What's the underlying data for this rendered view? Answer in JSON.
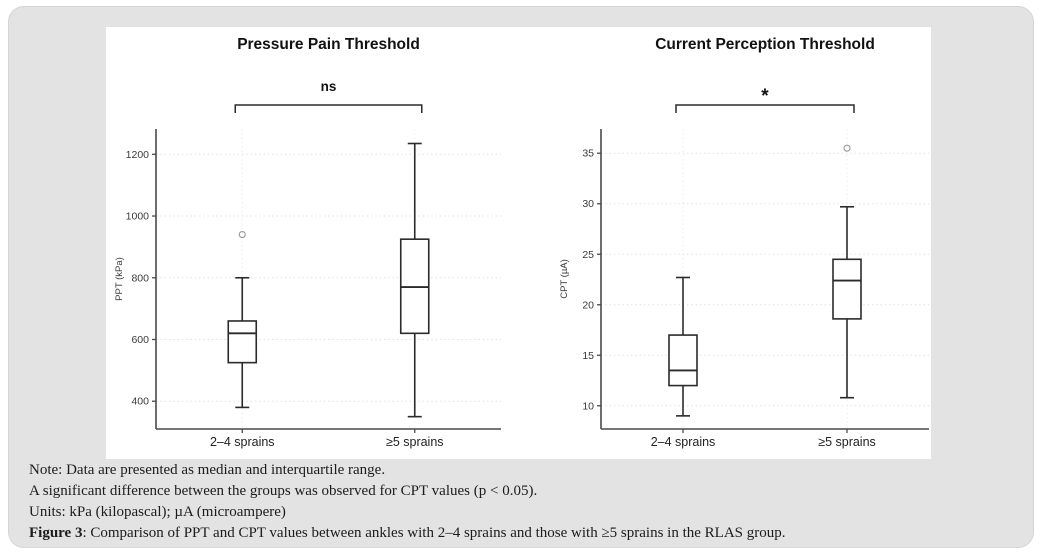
{
  "colors": {
    "card_background": "#e3e3e3",
    "panel_background": "#ffffff",
    "box_stroke": "#2b2b2b",
    "axis": "#4a4a4a",
    "grid": "#e1e1e1",
    "category_grid": "#ececec",
    "outlier": "#999999",
    "caption_text": "#1c1c1c"
  },
  "figure": {
    "caption": {
      "note": "Note: Data are presented as median and interquartile range.",
      "significance": "A significant difference between the groups was observed for CPT values (p < 0.05).",
      "units": "Units: kPa (kilopascal); µA (microampere)",
      "figure_label": "Figure 3",
      "figure_text": ": Comparison of PPT and CPT values between ankles with 2–4 sprains and those with ≥5 sprains in the RLAS group."
    }
  },
  "chart_data": [
    {
      "type": "box",
      "title": "Pressure Pain Threshold",
      "significance": "ns",
      "ylabel": "PPT (kPa)",
      "yticks": [
        400,
        600,
        800,
        1000,
        1200
      ],
      "ylim": [
        310,
        1282
      ],
      "grid": "dotted-horizontal",
      "categories": [
        "2–4 sprains",
        "≥5 sprains"
      ],
      "boxes": [
        {
          "category": "2–4 sprains",
          "whisker_low": 380,
          "q1": 525,
          "median": 620,
          "q3": 660,
          "whisker_high": 800,
          "outliers": [
            940
          ]
        },
        {
          "category": "≥5 sprains",
          "whisker_low": 350,
          "q1": 620,
          "median": 770,
          "q3": 925,
          "whisker_high": 1235,
          "outliers": []
        }
      ]
    },
    {
      "type": "box",
      "title": "Current Perception Threshold",
      "significance": "*",
      "ylabel": "CPT (µA)",
      "yticks": [
        10,
        15,
        20,
        25,
        30,
        35
      ],
      "ylim": [
        7.7,
        37.4
      ],
      "grid": "dotted-horizontal",
      "categories": [
        "2–4 sprains",
        "≥5 sprains"
      ],
      "boxes": [
        {
          "category": "2–4 sprains",
          "whisker_low": 9,
          "q1": 12,
          "median": 13.5,
          "q3": 17,
          "whisker_high": 22.7,
          "outliers": []
        },
        {
          "category": "≥5 sprains",
          "whisker_low": 10.8,
          "q1": 18.6,
          "median": 22.4,
          "q3": 24.5,
          "whisker_high": 29.7,
          "outliers": [
            35.5
          ]
        }
      ]
    }
  ]
}
